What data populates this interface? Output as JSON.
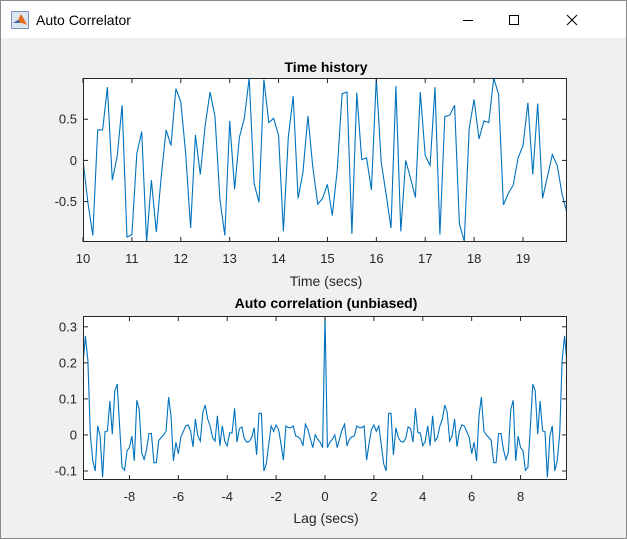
{
  "window": {
    "title": "Auto Correlator",
    "icon": "matlab-logo-icon",
    "controls": [
      "minimize-icon",
      "maximize-icon",
      "close-icon"
    ]
  },
  "chart_data": [
    {
      "type": "line",
      "title": "Time history",
      "xlabel": "Time (secs)",
      "ylabel": "",
      "xlim": [
        10,
        19.9
      ],
      "ylim": [
        -0.99,
        1.0
      ],
      "xticks": [
        10,
        11,
        12,
        13,
        14,
        15,
        16,
        17,
        18,
        19
      ],
      "xtick_labels": [
        "10",
        "11",
        "12",
        "13",
        "14",
        "15",
        "16",
        "17",
        "18",
        "19"
      ],
      "yticks": [
        0.5,
        0,
        -0.5
      ],
      "ytick_labels": [
        "0.5",
        "0",
        "-0.5"
      ],
      "grid": false,
      "color": "#0072bd",
      "x_start": 10.0,
      "x_step": 0.1,
      "values": [
        0,
        -0.51,
        -0.91,
        0.37,
        0.37,
        0.89,
        -0.24,
        0.05,
        0.67,
        -0.93,
        -0.9,
        0.08,
        0.35,
        -0.99,
        -0.24,
        -0.87,
        -0.2,
        0.37,
        0.18,
        0.87,
        0.71,
        0.08,
        -0.82,
        0.31,
        -0.17,
        0.43,
        0.83,
        0.53,
        -0.47,
        -0.91,
        0.48,
        -0.35,
        0.28,
        0.51,
        1.0,
        -0.28,
        -0.51,
        0.98,
        0.46,
        0.51,
        0.3,
        -0.86,
        0.28,
        0.78,
        -0.46,
        -0.14,
        0.54,
        -0.08,
        -0.53,
        -0.46,
        -0.29,
        -0.67,
        -0.12,
        0.81,
        0.83,
        -0.89,
        0.82,
        0.01,
        0.03,
        -0.36,
        1.0,
        -0.02,
        -0.41,
        -0.82,
        0.9,
        -0.86,
        0,
        -0.22,
        -0.45,
        0.83,
        0.06,
        -0.06,
        0.89,
        -0.9,
        0.53,
        0.55,
        0.67,
        -0.77,
        -0.98,
        0.39,
        0.74,
        0.26,
        0.48,
        0.46,
        1.0,
        0.8,
        -0.54,
        -0.4,
        -0.3,
        0.03,
        0.18,
        0.7,
        -0.17,
        0.69,
        -0.46,
        -0.2,
        0.07,
        -0.06,
        -0.41,
        -0.64
      ]
    },
    {
      "type": "line",
      "title": "Auto correlation (unbiased)",
      "xlabel": "Lag (secs)",
      "ylabel": "",
      "xlim": [
        -9.9,
        9.9
      ],
      "ylim": [
        -0.125,
        0.33
      ],
      "xticks": [
        -8,
        -6,
        -4,
        -2,
        0,
        2,
        4,
        6,
        8
      ],
      "xtick_labels": [
        "-8",
        "-6",
        "-4",
        "-2",
        "0",
        "2",
        "4",
        "6",
        "8"
      ],
      "yticks": [
        0.3,
        0.2,
        0.1,
        0,
        -0.1
      ],
      "ytick_labels": [
        "0.3",
        "0.2",
        "0.1",
        "0",
        "-0.1"
      ],
      "grid": false,
      "color": "#0072bd",
      "x_start": -9.9,
      "x_step": 0.1,
      "values": [
        0.196,
        0.275,
        0.206,
        0.002,
        -0.072,
        -0.1,
        0.025,
        -0.003,
        -0.118,
        0.009,
        0.011,
        0.094,
        0.002,
        0.122,
        0.141,
        0.02,
        -0.09,
        -0.098,
        -0.044,
        -0.035,
        -0.003,
        -0.072,
        0.096,
        0.071,
        -0.049,
        -0.068,
        -0.04,
        0.004,
        0.004,
        -0.077,
        -0.077,
        -0.015,
        -0.007,
        0,
        0.011,
        0.105,
        0.053,
        -0.072,
        -0.02,
        -0.052,
        -0.007,
        0.009,
        0.025,
        0.028,
        0.011,
        -0.033,
        0.044,
        -0.003,
        -0.017,
        0.062,
        0.083,
        0.044,
        0.025,
        -0.007,
        -0.017,
        0.053,
        -0.03,
        0.025,
        -0.018,
        -0.03,
        0.006,
        0.006,
        0.074,
        -0.02,
        0.018,
        0.022,
        -0.01,
        -0.02,
        -0.018,
        -0.007,
        0.02,
        -0.055,
        0.06,
        0.06,
        -0.1,
        -0.08,
        -0.025,
        0.025,
        0.01,
        0.028,
        0.015,
        -0.025,
        -0.07,
        0.025,
        0.02,
        0.02,
        0.025,
        -0.003,
        -0.005,
        -0.012,
        -0.03,
        0.03,
        0.015,
        -0.01,
        -0.035,
        0,
        -0.012,
        -0.02,
        -0.035,
        0.33,
        -0.035,
        -0.02,
        -0.012,
        0,
        -0.035,
        -0.01,
        0.015,
        0.03,
        -0.03,
        -0.012,
        -0.005,
        -0.003,
        0.025,
        0.02,
        0.02,
        0.025,
        -0.07,
        -0.025,
        0.015,
        0.028,
        0.01,
        0.025,
        -0.025,
        -0.08,
        -0.1,
        0.06,
        0.06,
        -0.055,
        0.02,
        -0.007,
        -0.018,
        -0.02,
        -0.01,
        0.022,
        0.018,
        -0.02,
        0.074,
        0.006,
        0.006,
        -0.03,
        -0.018,
        0.025,
        -0.03,
        0.053,
        -0.017,
        -0.007,
        0.025,
        0.044,
        0.083,
        0.062,
        -0.017,
        -0.003,
        0.044,
        -0.033,
        0.011,
        0.028,
        0.025,
        0.009,
        -0.007,
        -0.052,
        -0.02,
        -0.072,
        0.053,
        0.105,
        0.011,
        0,
        -0.007,
        -0.015,
        -0.077,
        -0.077,
        0.004,
        0.004,
        -0.04,
        -0.068,
        -0.049,
        0.071,
        0.096,
        -0.072,
        -0.003,
        -0.035,
        -0.044,
        -0.098,
        -0.09,
        0.02,
        0.141,
        0.122,
        0.002,
        0.094,
        0.011,
        0.009,
        -0.118,
        -0.003,
        0.025,
        -0.1,
        -0.072,
        0.002,
        0.206,
        0.275,
        0.196
      ]
    }
  ]
}
